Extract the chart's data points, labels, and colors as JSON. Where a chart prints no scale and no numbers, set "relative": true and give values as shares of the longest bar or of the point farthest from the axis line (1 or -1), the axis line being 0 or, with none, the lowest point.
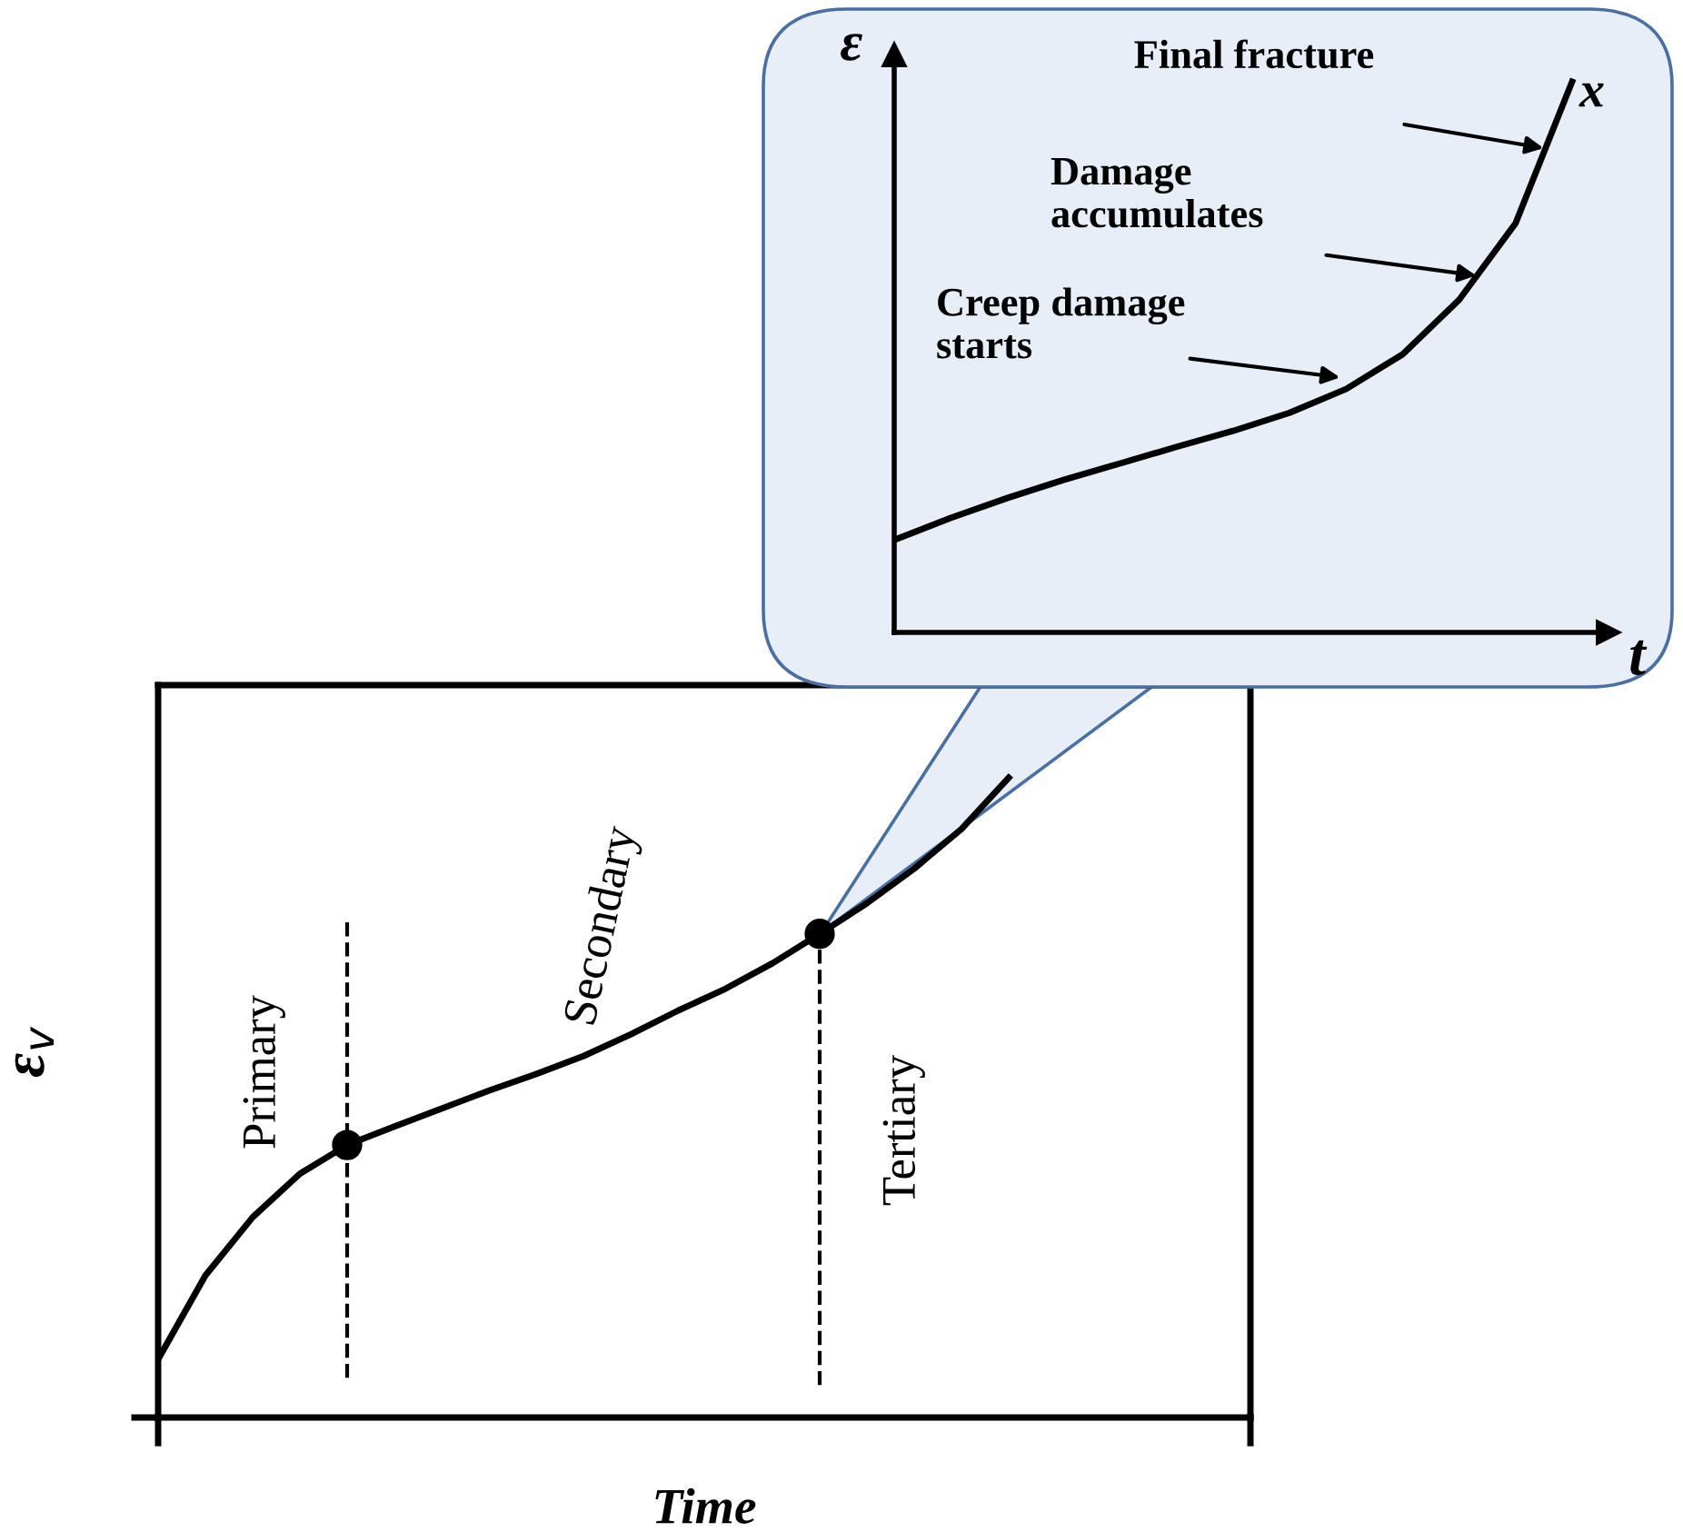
{
  "chart_data": [
    {
      "type": "line",
      "relative": true,
      "xlabel": "Time",
      "ylabel": "ε$_{v}$",
      "categories": [
        null,
        null,
        null,
        null,
        null,
        null,
        null,
        null,
        null,
        null,
        null,
        null,
        null,
        null,
        null,
        null,
        null,
        null,
        null
      ],
      "series": [
        {
          "color": "#000000",
          "values": [
            0.091,
            0.222,
            0.313,
            0.381,
            0.426,
            0.455,
            0.483,
            0.511,
            0.537,
            0.565,
            0.599,
            0.636,
            0.67,
            0.71,
            0.756,
            0.804,
            0.858,
            0.92,
            1
          ]
        }
      ],
      "annotations": [
        "Primary",
        "Secondary",
        "Tertiary"
      ],
      "line_style": "solid"
    },
    {
      "type": "line",
      "relative": true,
      "xlabel": "t",
      "ylabel": "ε",
      "categories": [
        null,
        null,
        null,
        null,
        null,
        null,
        null,
        null,
        null,
        null,
        null,
        null,
        null
      ],
      "series": [
        {
          "color": "#000000",
          "values": [
            0.168,
            0.208,
            0.244,
            0.277,
            0.307,
            0.337,
            0.366,
            0.399,
            0.442,
            0.505,
            0.604,
            0.743,
            1
          ]
        }
      ],
      "annotations": [
        "Final fracture",
        "Damage\naccumulates",
        "Creep damage\nstarts",
        "x"
      ],
      "line_style": "solid"
    }
  ]
}
